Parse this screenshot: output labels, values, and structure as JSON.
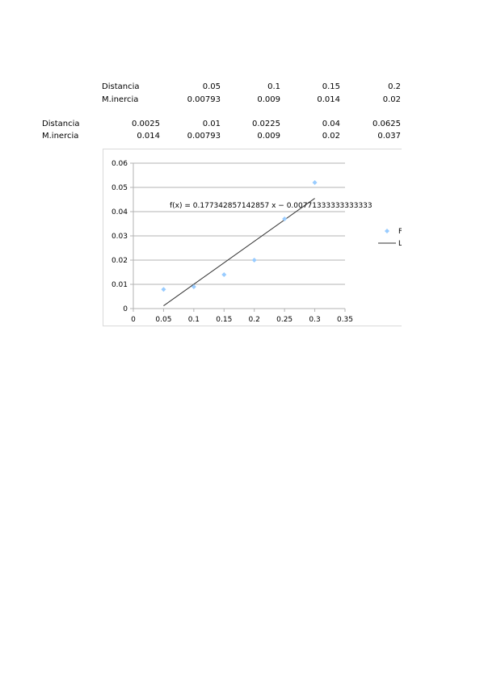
{
  "table1": {
    "rows": [
      {
        "label": "Distancia",
        "values": [
          "0.05",
          "0.1",
          "0.15",
          "0.2"
        ]
      },
      {
        "label": "M.inercia",
        "values": [
          "0.00793",
          "0.009",
          "0.014",
          "0.02"
        ]
      }
    ]
  },
  "table2": {
    "rows": [
      {
        "label": "Distancia",
        "values": [
          "0.0025",
          "0.01",
          "0.0225",
          "0.04",
          "0.0625"
        ]
      },
      {
        "label": "M.inercia",
        "values": [
          "0.014",
          "0.00793",
          "0.009",
          "0.02",
          "0.037"
        ]
      }
    ]
  },
  "chart_data": {
    "type": "scatter",
    "x": [
      0.05,
      0.1,
      0.15,
      0.2,
      0.25,
      0.3
    ],
    "y": [
      0.00793,
      0.009,
      0.014,
      0.02,
      0.037,
      0.052
    ],
    "xlim": [
      0,
      0.35
    ],
    "ylim": [
      0,
      0.06
    ],
    "xticks": [
      "0",
      "0.05",
      "0.1",
      "0.15",
      "0.2",
      "0.25",
      "0.3",
      "0.35"
    ],
    "yticks": [
      "0",
      "0.01",
      "0.02",
      "0.03",
      "0.04",
      "0.05",
      "0.06"
    ],
    "grid": "horizontal",
    "trendline": {
      "slope": 0.177342857142857,
      "intercept": -0.0077133333333333,
      "x_range": [
        0.05,
        0.3
      ]
    },
    "equation": "f(x) = 0.177342857142857 x − 0.00771333333333333",
    "legend": {
      "position": "right",
      "entries": [
        "F",
        "L"
      ]
    },
    "colors": {
      "points": "#99ccff",
      "trend": "#333333",
      "grid": "#b3b3b3"
    }
  }
}
